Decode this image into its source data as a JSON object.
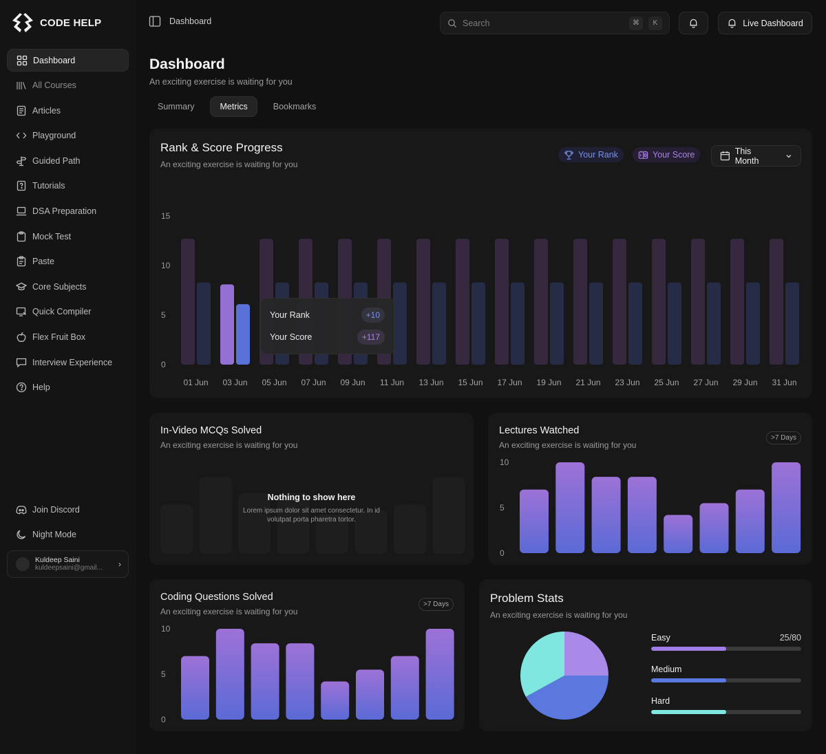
{
  "brand": {
    "name": "CODE HELP"
  },
  "sidebar": {
    "items": [
      {
        "label": "Dashboard",
        "icon": "dashboard-icon",
        "active": true
      },
      {
        "label": "All Courses",
        "icon": "courses-icon"
      },
      {
        "label": "Articles",
        "icon": "articles-icon"
      },
      {
        "label": "Playground",
        "icon": "code-icon"
      },
      {
        "label": "Guided Path",
        "icon": "signpost-icon"
      },
      {
        "label": "Tutorials",
        "icon": "tutorials-icon"
      },
      {
        "label": "DSA Preparation",
        "icon": "laptop-icon"
      },
      {
        "label": "Mock Test",
        "icon": "clipboard-icon"
      },
      {
        "label": "Paste",
        "icon": "paste-icon"
      },
      {
        "label": "Core Subjects",
        "icon": "graduation-cap-icon"
      },
      {
        "label": "Quick Compiler",
        "icon": "compiler-icon"
      },
      {
        "label": "Flex Fruit Box",
        "icon": "fruit-icon"
      },
      {
        "label": "Interview Experience",
        "icon": "chat-icon"
      },
      {
        "label": "Help",
        "icon": "help-icon"
      }
    ],
    "bottom": [
      {
        "label": "Join Discord",
        "icon": "discord-icon"
      },
      {
        "label": "Night Mode",
        "icon": "moon-icon"
      }
    ],
    "user": {
      "name": "Kuldeep Saini",
      "email": "kuldeepsaini@gmail..."
    }
  },
  "topbar": {
    "title": "Dashboard",
    "search_placeholder": "Search",
    "shortcut_keys": [
      "⌘",
      "K"
    ],
    "live_label": "Live Dashboard"
  },
  "header": {
    "title": "Dashboard",
    "subtitle": "An exciting exercise is waiting for you",
    "tabs": [
      {
        "label": "Summary",
        "active": false
      },
      {
        "label": "Metrics",
        "active": true
      },
      {
        "label": "Bookmarks",
        "active": false
      }
    ]
  },
  "rank_card": {
    "title": "Rank & Score Progress",
    "subtitle": "An exciting exercise is waiting for you",
    "legend_rank": "Your Rank",
    "legend_score": "Your Score",
    "period": "This Month",
    "tooltip": {
      "rank_label": "Your Rank",
      "rank_value": "+10",
      "score_label": "Your Score",
      "score_value": "+117"
    }
  },
  "mcq_card": {
    "title": "In-Video MCQs Solved",
    "subtitle": "An exciting exercise is waiting for you",
    "empty_title": "Nothing to show here",
    "empty_text": "Lorem ipsum dolor sit amet consectetur. In id volutpat porta pharetra tortor."
  },
  "lectures_card": {
    "title": "Lectures Watched",
    "subtitle": "An exciting exercise is waiting for you",
    "badge": ">7 Days"
  },
  "coding_card": {
    "title": "Coding Questions Solved",
    "subtitle": "An exciting exercise is waiting for you",
    "badge": ">7 Days"
  },
  "problem_card": {
    "title": "Problem Stats",
    "subtitle": "An exciting exercise is waiting for you",
    "stats": [
      {
        "label": "Easy",
        "value": "25/80",
        "fraction": 0.5,
        "color": "#a07ce6"
      },
      {
        "label": "Medium",
        "value": "",
        "fraction": 0.5,
        "color": "#5a78e0"
      },
      {
        "label": "Hard",
        "value": "",
        "fraction": 0.5,
        "color": "#7fe6e0"
      }
    ]
  },
  "colors": {
    "accent_purple": "#9b72d8",
    "accent_blue": "#5a72d8",
    "accent_teal": "#7fe6e0"
  },
  "chart_data": [
    {
      "id": "rank-score",
      "type": "bar",
      "categories": [
        "01 Jun",
        "03 Jun",
        "05 Jun",
        "07 Jun",
        "09 Jun",
        "11 Jun",
        "13 Jun",
        "15 Jun",
        "17 Jun",
        "19 Jun",
        "21 Jun",
        "23 Jun",
        "25 Jun",
        "27 Jun",
        "29 Jun",
        "31 Jun"
      ],
      "series": [
        {
          "name": "Your Rank",
          "values": [
            12.7,
            8.1,
            12.7,
            12.7,
            12.7,
            12.7,
            12.7,
            12.7,
            12.7,
            12.7,
            12.7,
            12.7,
            12.7,
            12.7,
            12.7,
            12.7
          ]
        },
        {
          "name": "Your Score",
          "values": [
            8.3,
            6.1,
            8.3,
            8.3,
            8.3,
            8.3,
            8.3,
            8.3,
            8.3,
            8.3,
            8.3,
            8.3,
            8.3,
            8.3,
            8.3,
            8.3
          ]
        }
      ],
      "highlight_index": 1,
      "y_ticks": [
        0,
        5,
        10,
        15
      ],
      "ylim": [
        0,
        15
      ]
    },
    {
      "id": "mcq",
      "type": "bar",
      "placeholder": true,
      "values": [
        5.5,
        8.6,
        6.8,
        6.8,
        4.4,
        4.9,
        5.5,
        8.6
      ],
      "ylim": [
        0,
        10
      ]
    },
    {
      "id": "lectures",
      "type": "bar",
      "values": [
        7,
        10,
        8.4,
        8.4,
        4.2,
        5.5,
        7,
        10
      ],
      "y_ticks": [
        0,
        5,
        10
      ],
      "ylim": [
        0,
        10
      ]
    },
    {
      "id": "coding",
      "type": "bar",
      "values": [
        7,
        10,
        8.4,
        8.4,
        4.2,
        5.5,
        7,
        10
      ],
      "y_ticks": [
        0,
        5,
        10
      ],
      "ylim": [
        0,
        10
      ]
    },
    {
      "id": "problem-stats",
      "type": "pie",
      "labels": [
        "Easy",
        "Medium",
        "Hard"
      ],
      "values": [
        25,
        42,
        33
      ],
      "colors": [
        "#a98ae8",
        "#5a78dd",
        "#7fe6e0"
      ]
    }
  ]
}
